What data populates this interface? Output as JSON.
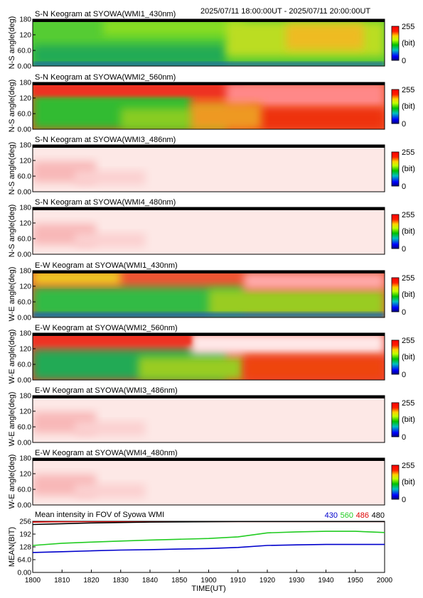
{
  "header": {
    "time_range": "2025/07/11 18:00:00UT - 2025/07/11 20:00:00UT"
  },
  "colorbar": {
    "max_label": "255",
    "unit_label": "(bit)",
    "min_label": "0"
  },
  "panels": [
    {
      "title": "S-N Keogram at SYOWA(WMI1_430nm)",
      "ylabel": "N-S angle(deg)",
      "yticks": [
        "0.00",
        "60.0",
        "120",
        "180"
      ],
      "style": "wmi1",
      "gradient": "v"
    },
    {
      "title": "S-N Keogram at SYOWA(WMI2_560nm)",
      "ylabel": "N-S angle(deg)",
      "yticks": [
        "0.00",
        "60.0",
        "120",
        "180"
      ],
      "style": "wmi2",
      "gradient": "v"
    },
    {
      "title": "S-N Keogram at SYOWA(WMI3_486nm)",
      "ylabel": "N-S angle(deg)",
      "yticks": [
        "0.00",
        "60.0",
        "120",
        "180"
      ],
      "style": "pale",
      "gradient": "v"
    },
    {
      "title": "S-N Keogram at SYOWA(WMI4_480nm)",
      "ylabel": "N-S angle(deg)",
      "yticks": [
        "0.00",
        "60.0",
        "120",
        "180"
      ],
      "style": "pale",
      "gradient": "v"
    },
    {
      "title": "E-W Keogram at SYOWA(WMI1_430nm)",
      "ylabel": "W-E angle(deg)",
      "yticks": [
        "0.00",
        "60.0",
        "120",
        "180"
      ],
      "style": "wmi1ew",
      "gradient": "v"
    },
    {
      "title": "E-W Keogram at SYOWA(WMI2_560nm)",
      "ylabel": "W-E angle(deg)",
      "yticks": [
        "0.00",
        "60.0",
        "120",
        "180"
      ],
      "style": "wmi2ew",
      "gradient": "v"
    },
    {
      "title": "E-W Keogram at SYOWA(WMI3_486nm)",
      "ylabel": "W-E angle(deg)",
      "yticks": [
        "0.00",
        "60.0",
        "120",
        "180"
      ],
      "style": "pale",
      "gradient": "v"
    },
    {
      "title": "E-W Keogram at SYOWA(WMI4_480nm)",
      "ylabel": "W-E angle(deg)",
      "yticks": [
        "0.00",
        "60.0",
        "120",
        "180"
      ],
      "style": "pale",
      "gradient": "v"
    }
  ],
  "mean_panel": {
    "title": "Mean intensity in FOV of Syowa WMI",
    "ylabel": "MEAN(BIT)",
    "yticks": [
      "0.00",
      "64.0",
      "128",
      "192",
      "256"
    ],
    "legend": [
      {
        "label": "430",
        "color": "#0000cc"
      },
      {
        "label": "560",
        "color": "#22cc22"
      },
      {
        "label": "486",
        "color": "#dd0000"
      },
      {
        "label": "480",
        "color": "#000000"
      }
    ]
  },
  "xaxis": {
    "label": "TIME(UT)",
    "ticks": [
      "1800",
      "1810",
      "1820",
      "1830",
      "1840",
      "1850",
      "1900",
      "1910",
      "1920",
      "1930",
      "1940",
      "1950",
      "2000"
    ]
  },
  "chart_data": {
    "type": "line",
    "title": "Mean intensity in FOV of Syowa WMI",
    "xlabel": "TIME(UT)",
    "ylabel": "MEAN(BIT)",
    "x": [
      "1800",
      "1810",
      "1820",
      "1830",
      "1840",
      "1850",
      "1900",
      "1910",
      "1920",
      "1930",
      "1940",
      "1950",
      "2000"
    ],
    "ylim": [
      0,
      256
    ],
    "series": [
      {
        "name": "430",
        "color": "#0000cc",
        "values": [
          100,
          104,
          108,
          112,
          114,
          117,
          120,
          125,
          135,
          138,
          140,
          140,
          140
        ]
      },
      {
        "name": "560",
        "color": "#22cc22",
        "values": [
          135,
          146,
          152,
          157,
          162,
          166,
          170,
          178,
          198,
          203,
          206,
          206,
          200
        ]
      },
      {
        "name": "486",
        "color": "#dd0000",
        "values": [
          252,
          254,
          255,
          255,
          255,
          255,
          255,
          255,
          255,
          255,
          255,
          255,
          255
        ]
      },
      {
        "name": "480",
        "color": "#000000",
        "values": [
          240,
          244,
          248,
          250,
          252,
          253,
          254,
          255,
          255,
          255,
          255,
          255,
          255
        ]
      }
    ]
  }
}
